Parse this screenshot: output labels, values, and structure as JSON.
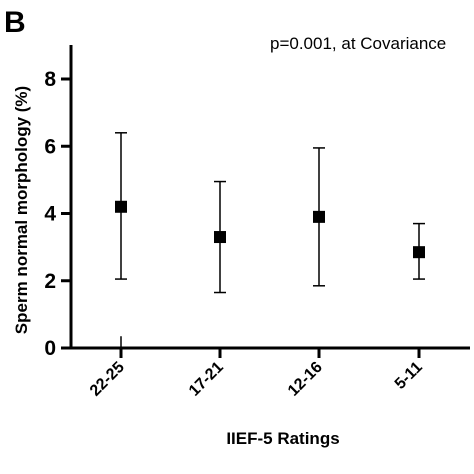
{
  "panel_label": "B",
  "chart_data": {
    "type": "scatter",
    "annotation": "p=0.001, at Covariance",
    "xlabel": "IIEF-5 Ratings",
    "ylabel": "Sperm normal morphology (%)",
    "categories": [
      "22-25",
      "17-21",
      "12-16",
      "5-11"
    ],
    "series": [
      {
        "values": [
          4.2,
          3.3,
          3.9,
          2.85
        ],
        "error_low": [
          2.05,
          1.65,
          1.85,
          2.05
        ],
        "error_high": [
          6.4,
          4.95,
          5.95,
          3.7
        ]
      }
    ],
    "ylim": [
      0,
      9
    ],
    "yticks": [
      0,
      2,
      4,
      6,
      8
    ],
    "ytick_labels": [
      "0",
      "2",
      "4",
      "6",
      "8"
    ],
    "grid": false,
    "legend": "none"
  }
}
